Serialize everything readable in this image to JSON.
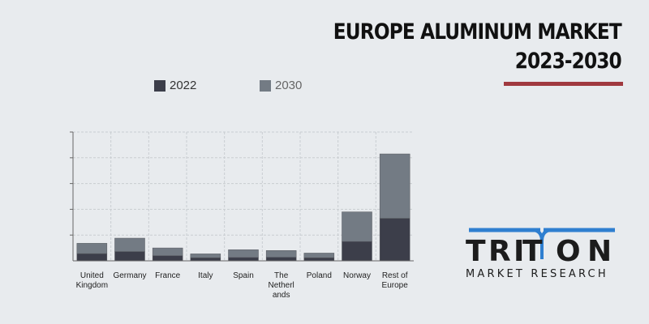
{
  "header": {
    "title_line1": "EUROPE ALUMINUM MARKET",
    "title_line2": "2023-2030",
    "accent_color": "#a0393f"
  },
  "legend": [
    {
      "label": "2022",
      "color": "#3c3e4a"
    },
    {
      "label": "2030",
      "color": "#737b84"
    }
  ],
  "chart_data": {
    "type": "bar",
    "stacked": true,
    "categories": [
      [
        "United",
        "Kingdom"
      ],
      [
        "Germany"
      ],
      [
        "France"
      ],
      [
        "Italy"
      ],
      [
        "Spain"
      ],
      [
        "The",
        "Netherl",
        "ands"
      ],
      [
        "Poland"
      ],
      [
        "Norway"
      ],
      [
        "Rest of",
        "Europe"
      ]
    ],
    "series": [
      {
        "name": "2022",
        "color": "#3c3e4a",
        "values": [
          0.28,
          0.36,
          0.2,
          0.12,
          0.13,
          0.14,
          0.12,
          0.75,
          1.65
        ]
      },
      {
        "name": "2030",
        "color": "#737b84",
        "values": [
          0.4,
          0.52,
          0.3,
          0.15,
          0.3,
          0.26,
          0.18,
          1.15,
          2.5
        ]
      }
    ],
    "ylim": [
      0,
      5
    ],
    "y_ticks": 5,
    "grid": true,
    "y_tick_labels_visible": false
  },
  "logo": {
    "name": "TRITON",
    "tagline": "MARKET RESEARCH",
    "accent_color": "#2f7fd0"
  }
}
